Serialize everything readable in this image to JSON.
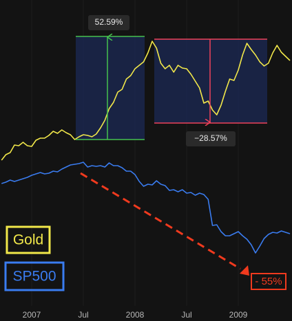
{
  "chart_data": {
    "type": "line",
    "x": [
      -3.5,
      -3,
      -2.5,
      -2,
      -1.5,
      -1,
      -0.5,
      0,
      0.5,
      1,
      1.5,
      2,
      2.5,
      3,
      3.5,
      4,
      4.5,
      5,
      5.5,
      6,
      6.5,
      7,
      7.5,
      8,
      8.5,
      9,
      9.5,
      10,
      10.5,
      11,
      11.5,
      12,
      12.5,
      13,
      13.5,
      14,
      14.5,
      15,
      15.5,
      16,
      16.5,
      17,
      17.5,
      18,
      18.5,
      19,
      19.5,
      20,
      20.5,
      21,
      21.5,
      22,
      22.5,
      23,
      23.5,
      24,
      24.5,
      25,
      25.5,
      26,
      26.5,
      27,
      27.5,
      28,
      28.5,
      29,
      29.5,
      30
    ],
    "series": [
      {
        "name": "Gold",
        "color": "#f2e84a",
        "values": [
          212,
          220,
          223,
          234,
          233,
          238,
          233,
          232,
          241,
          244,
          244,
          248,
          254,
          251,
          256,
          252,
          249,
          242,
          246,
          249,
          248,
          246,
          250,
          259,
          270,
          287,
          296,
          311,
          315,
          330,
          335,
          345,
          350,
          355,
          368,
          385,
          375,
          353,
          345,
          350,
          340,
          350,
          346,
          345,
          337,
          327,
          317,
          295,
          298,
          285,
          278,
          292,
          312,
          330,
          328,
          343,
          365,
          382,
          373,
          365,
          355,
          349,
          353,
          368,
          379,
          369,
          363,
          357
        ]
      },
      {
        "name": "SP500",
        "color": "#3a7cf0",
        "values": [
          178,
          180,
          183,
          181,
          183,
          185,
          187,
          190,
          192,
          194,
          192,
          193,
          196,
          195,
          199,
          202,
          205,
          206,
          207,
          209,
          202,
          204,
          203,
          204,
          202,
          208,
          204,
          204,
          201,
          196,
          196,
          191,
          181,
          174,
          177,
          176,
          182,
          177,
          175,
          168,
          169,
          166,
          169,
          164,
          165,
          161,
          164,
          162,
          155,
          117,
          118,
          108,
          102,
          102,
          105,
          108,
          102,
          97,
          89,
          77,
          87,
          98,
          104,
          107,
          106,
          109,
          107,
          105
        ]
      }
    ],
    "xlim": [
      -3.68,
      30.24
    ],
    "ylim": [
      0,
      445
    ],
    "xticks": [
      {
        "value": 0,
        "label": "2007"
      },
      {
        "value": 6,
        "label": "Jul"
      },
      {
        "value": 12,
        "label": "2008"
      },
      {
        "value": 18,
        "label": "Jul"
      },
      {
        "value": 24,
        "label": "2009"
      }
    ],
    "grid": true,
    "annotations": [
      "52.59%",
      "−28.57%",
      "- 55%"
    ]
  }
}
